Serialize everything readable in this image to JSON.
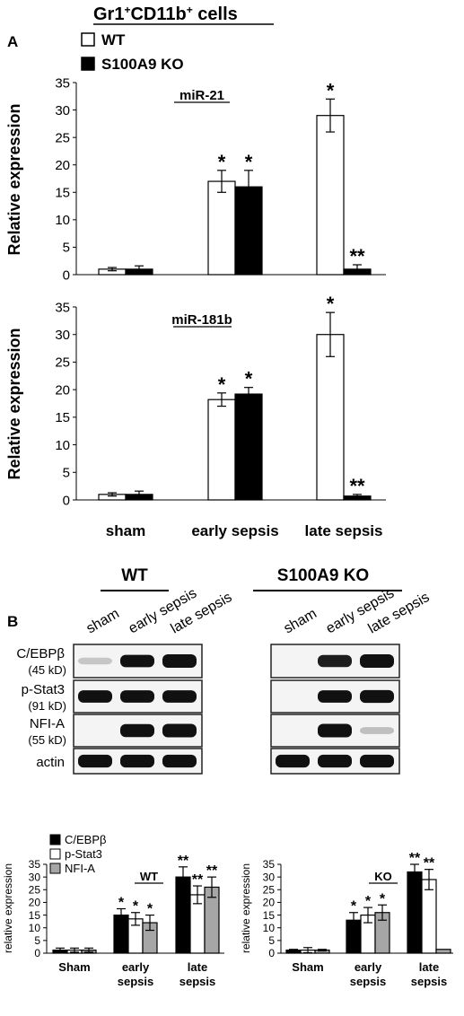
{
  "figure": {
    "title_main": "Gr1",
    "title_sup1": "+",
    "title_mid": "CD11b",
    "title_sup2": "+",
    "title_tail": " cells",
    "panel_a": "A",
    "panel_b": "B"
  },
  "legend_a": {
    "wt": "WT",
    "ko": "S100A9 KO"
  },
  "blots": {
    "groups": [
      {
        "title": "WT",
        "lanes": [
          "sham",
          "early sepsis",
          "late sepsis"
        ]
      },
      {
        "title": "S100A9 KO",
        "lanes": [
          "sham",
          "early sepsis",
          "late sepsis"
        ]
      }
    ],
    "rows": [
      {
        "name": "C/EBPβ",
        "size": "(45 kD)",
        "wt": [
          0.05,
          0.85,
          1.0
        ],
        "ko": [
          0.0,
          0.8,
          1.0
        ]
      },
      {
        "name": "p-Stat3",
        "size": "(91 kD)",
        "wt": [
          0.85,
          0.85,
          0.85
        ],
        "ko": [
          0.0,
          0.85,
          0.9
        ]
      },
      {
        "name": "NFI-A",
        "size": "(55 kD)",
        "wt": [
          0.0,
          0.95,
          1.0
        ],
        "ko": [
          0.0,
          1.0,
          0.08
        ]
      },
      {
        "name": "actin",
        "size": "",
        "wt": [
          0.9,
          0.9,
          0.9
        ],
        "ko": [
          0.9,
          0.9,
          0.9
        ]
      }
    ]
  },
  "chart_data": [
    {
      "type": "bar",
      "title": "miR-21",
      "ylabel": "Relative expression",
      "categories": [
        "sham",
        "early sepsis",
        "late sepsis"
      ],
      "ylim": [
        0,
        35
      ],
      "yticks": [
        0,
        5,
        10,
        15,
        20,
        25,
        30,
        35
      ],
      "series": [
        {
          "name": "WT",
          "color": "#ffffff",
          "values": [
            1,
            17,
            29
          ],
          "errors": [
            0.3,
            2,
            3
          ],
          "marks": [
            "",
            "*",
            "*"
          ]
        },
        {
          "name": "S100A9 KO",
          "color": "#000000",
          "values": [
            1,
            16,
            1
          ],
          "errors": [
            0.6,
            3,
            0.8
          ],
          "marks": [
            "",
            "*",
            "**"
          ]
        }
      ]
    },
    {
      "type": "bar",
      "title": "miR-181b",
      "ylabel": "Relative expression",
      "categories": [
        "sham",
        "early sepsis",
        "late sepsis"
      ],
      "ylim": [
        0,
        35
      ],
      "yticks": [
        0,
        5,
        10,
        15,
        20,
        25,
        30,
        35
      ],
      "series": [
        {
          "name": "WT",
          "color": "#ffffff",
          "values": [
            1,
            18.2,
            30
          ],
          "errors": [
            0.3,
            1.2,
            4
          ],
          "marks": [
            "",
            "*",
            "*"
          ]
        },
        {
          "name": "S100A9 KO",
          "color": "#000000",
          "values": [
            1,
            19.2,
            0.7
          ],
          "errors": [
            0.6,
            1.2,
            0.3
          ],
          "marks": [
            "",
            "*",
            "**"
          ]
        }
      ]
    },
    {
      "type": "bar",
      "title": "WT",
      "ylabel": "relative expression",
      "categories": [
        "Sham",
        "early sepsis",
        "late sepsis"
      ],
      "ylim": [
        0,
        35
      ],
      "yticks": [
        0,
        5,
        10,
        15,
        20,
        25,
        30,
        35
      ],
      "legend": [
        "C/EBPβ",
        "p-Stat3",
        "NFI-A"
      ],
      "series": [
        {
          "name": "C/EBPβ",
          "color": "#000000",
          "values": [
            1.2,
            15,
            30
          ],
          "errors": [
            0.8,
            2.5,
            4
          ],
          "marks": [
            "",
            "*",
            "**"
          ]
        },
        {
          "name": "p-Stat3",
          "color": "#ffffff",
          "values": [
            1.2,
            13.5,
            23
          ],
          "errors": [
            0.8,
            2.5,
            3.5
          ],
          "marks": [
            "",
            "*",
            "**"
          ]
        },
        {
          "name": "NFI-A",
          "color": "#a6a6a6",
          "values": [
            1.2,
            12,
            26
          ],
          "errors": [
            0.8,
            3,
            4
          ],
          "marks": [
            "",
            "*",
            "**"
          ]
        }
      ]
    },
    {
      "type": "bar",
      "title": "KO",
      "ylabel": "relative expression",
      "categories": [
        "Sham",
        "early sepsis",
        "late sepsis"
      ],
      "ylim": [
        0,
        35
      ],
      "yticks": [
        0,
        5,
        10,
        15,
        20,
        25,
        30,
        35
      ],
      "series": [
        {
          "name": "C/EBPβ",
          "color": "#000000",
          "values": [
            1.2,
            13,
            32
          ],
          "errors": [
            0.3,
            3,
            3
          ],
          "marks": [
            "",
            "*",
            "**"
          ]
        },
        {
          "name": "p-Stat3",
          "color": "#ffffff",
          "values": [
            1.2,
            15,
            29
          ],
          "errors": [
            1,
            3,
            4
          ],
          "marks": [
            "",
            "*",
            "**"
          ]
        },
        {
          "name": "NFI-A",
          "color": "#a6a6a6",
          "values": [
            1.2,
            16,
            1.5
          ],
          "errors": [
            0.3,
            3,
            0
          ],
          "marks": [
            "",
            "*",
            ""
          ]
        }
      ]
    }
  ]
}
